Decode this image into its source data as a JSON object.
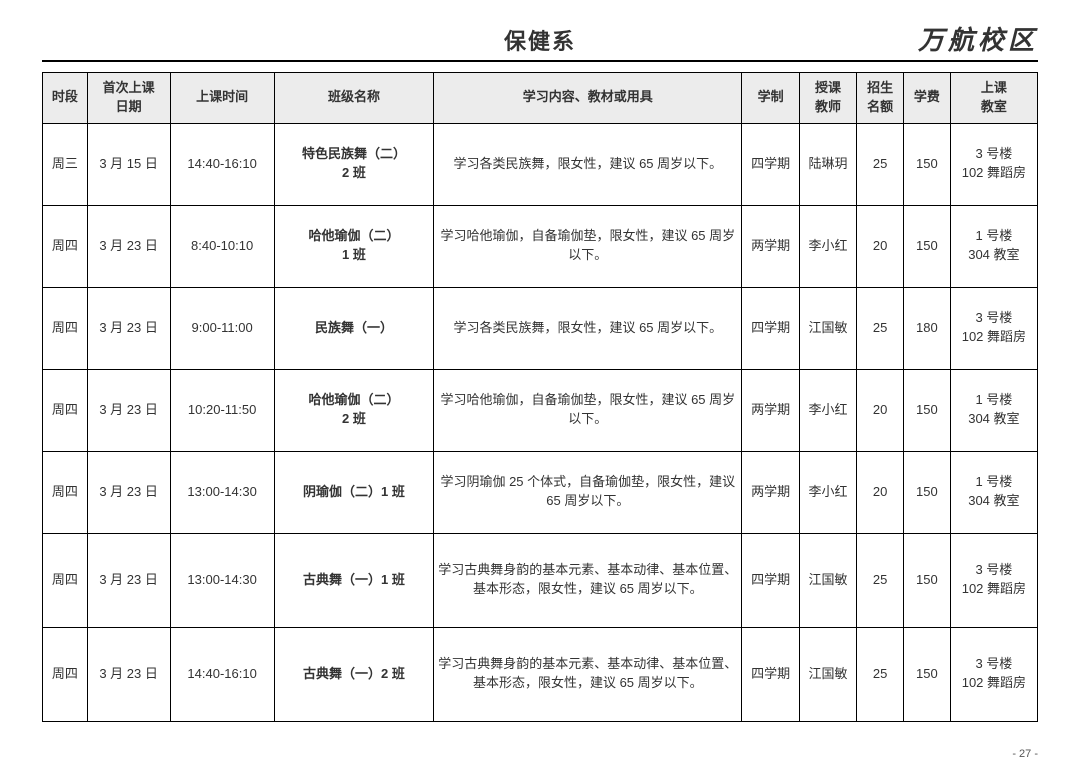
{
  "header": {
    "department": "保健系",
    "campus": "万航校区"
  },
  "page_number": "- 27 -",
  "table": {
    "columns": [
      "时段",
      "首次上课\n日期",
      "上课时间",
      "班级名称",
      "学习内容、教材或用具",
      "学制",
      "授课\n教师",
      "招生\n名额",
      "学费",
      "上课\n教室"
    ],
    "rows": [
      {
        "day": "周三",
        "first_date": "3 月 15 日",
        "time": "14:40-16:10",
        "class_name": "特色民族舞（二）\n2 班",
        "content": "学习各类民族舞，限女性，建议 65 周岁以下。",
        "term": "四学期",
        "teacher": "陆琳玥",
        "capacity": "25",
        "fee": "150",
        "room": "3 号楼\n102 舞蹈房"
      },
      {
        "day": "周四",
        "first_date": "3 月 23 日",
        "time": "8:40-10:10",
        "class_name": "哈他瑜伽（二）\n1 班",
        "content": "学习哈他瑜伽，自备瑜伽垫，限女性，建议 65 周岁以下。",
        "term": "两学期",
        "teacher": "李小红",
        "capacity": "20",
        "fee": "150",
        "room": "1 号楼\n304 教室"
      },
      {
        "day": "周四",
        "first_date": "3 月 23 日",
        "time": "9:00-11:00",
        "class_name": "民族舞（一）",
        "content": "学习各类民族舞，限女性，建议 65 周岁以下。",
        "term": "四学期",
        "teacher": "江国敏",
        "capacity": "25",
        "fee": "180",
        "room": "3 号楼\n102 舞蹈房"
      },
      {
        "day": "周四",
        "first_date": "3 月 23 日",
        "time": "10:20-11:50",
        "class_name": "哈他瑜伽（二）\n2 班",
        "content": "学习哈他瑜伽，自备瑜伽垫，限女性，建议 65 周岁以下。",
        "term": "两学期",
        "teacher": "李小红",
        "capacity": "20",
        "fee": "150",
        "room": "1 号楼\n304 教室"
      },
      {
        "day": "周四",
        "first_date": "3 月 23 日",
        "time": "13:00-14:30",
        "class_name": "阴瑜伽（二）1 班",
        "content": "学习阴瑜伽 25 个体式，自备瑜伽垫，限女性，建议 65 周岁以下。",
        "term": "两学期",
        "teacher": "李小红",
        "capacity": "20",
        "fee": "150",
        "room": "1 号楼\n304 教室"
      },
      {
        "day": "周四",
        "first_date": "3 月 23 日",
        "time": "13:00-14:30",
        "class_name": "古典舞（一）1 班",
        "content": "学习古典舞身韵的基本元素、基本动律、基本位置、基本形态，限女性，建议 65 周岁以下。",
        "term": "四学期",
        "teacher": "江国敏",
        "capacity": "25",
        "fee": "150",
        "room": "3 号楼\n102 舞蹈房",
        "tall": true
      },
      {
        "day": "周四",
        "first_date": "3 月 23 日",
        "time": "14:40-16:10",
        "class_name": "古典舞（一）2 班",
        "content": "学习古典舞身韵的基本元素、基本动律、基本位置、基本形态，限女性，建议 65 周岁以下。",
        "term": "四学期",
        "teacher": "江国敏",
        "capacity": "25",
        "fee": "150",
        "room": "3 号楼\n102 舞蹈房",
        "tall": true
      }
    ]
  }
}
